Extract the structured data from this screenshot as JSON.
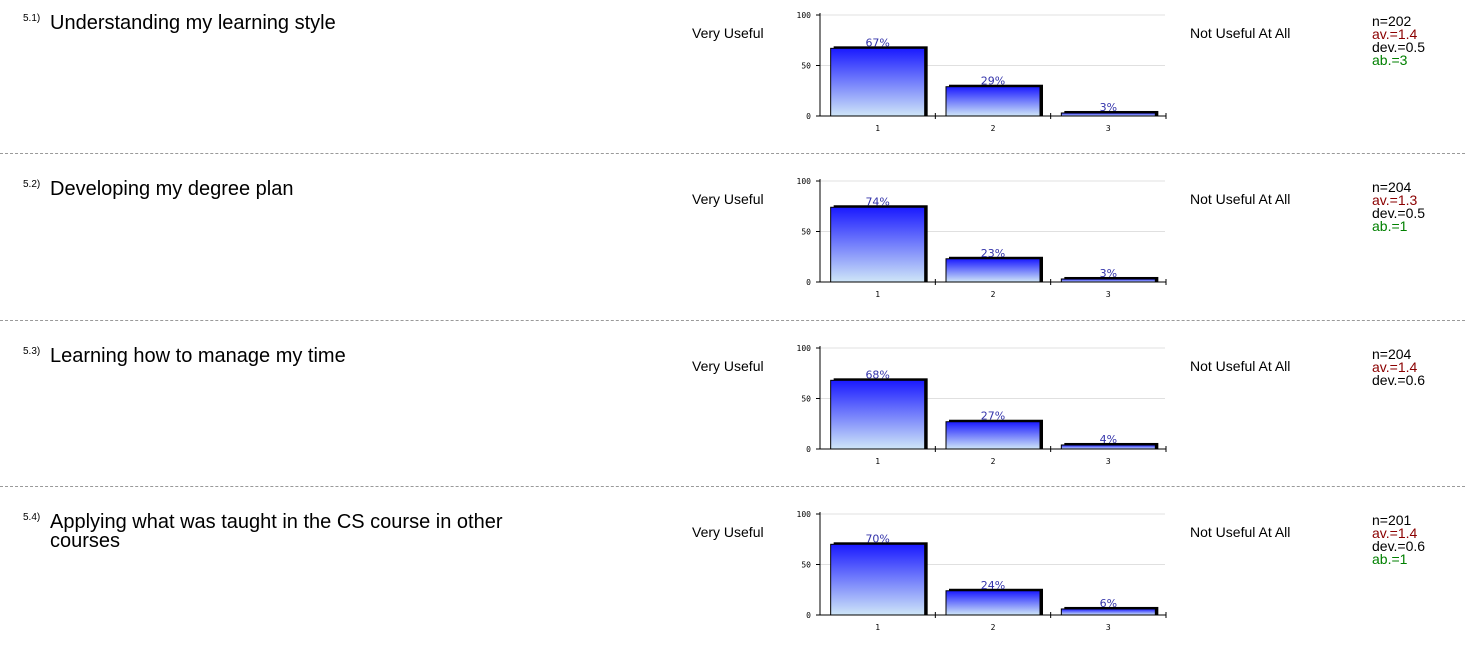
{
  "scale": {
    "left_label": "Very Useful",
    "right_label": "Not Useful At All"
  },
  "chart_data": [
    {
      "type": "bar",
      "title": "Understanding my learning style",
      "categories": [
        "1",
        "2",
        "3"
      ],
      "values": [
        67,
        29,
        3
      ],
      "value_labels": [
        "67%",
        "29%",
        "3%"
      ],
      "ylim": [
        0,
        100
      ],
      "yticks": [
        "0",
        "50",
        "100"
      ]
    },
    {
      "type": "bar",
      "title": "Developing my degree plan",
      "categories": [
        "1",
        "2",
        "3"
      ],
      "values": [
        74,
        23,
        3
      ],
      "value_labels": [
        "74%",
        "23%",
        "3%"
      ],
      "ylim": [
        0,
        100
      ],
      "yticks": [
        "0",
        "50",
        "100"
      ]
    },
    {
      "type": "bar",
      "title": "Learning how to manage my time",
      "categories": [
        "1",
        "2",
        "3"
      ],
      "values": [
        68,
        27,
        4
      ],
      "value_labels": [
        "68%",
        "27%",
        "4%"
      ],
      "ylim": [
        0,
        100
      ],
      "yticks": [
        "0",
        "50",
        "100"
      ]
    },
    {
      "type": "bar",
      "title": "Applying what was taught in the CS course in other courses",
      "categories": [
        "1",
        "2",
        "3"
      ],
      "values": [
        70,
        24,
        6
      ],
      "value_labels": [
        "70%",
        "24%",
        "6%"
      ],
      "ylim": [
        0,
        100
      ],
      "yticks": [
        "0",
        "50",
        "100"
      ]
    }
  ],
  "items": [
    {
      "number": "5.1)",
      "question": "Understanding my learning style",
      "n": "n=202",
      "av": "av.=1.4",
      "dev": "dev.=0.5",
      "ab": "ab.=3"
    },
    {
      "number": "5.2)",
      "question": "Developing my degree plan",
      "n": "n=204",
      "av": "av.=1.3",
      "dev": "dev.=0.5",
      "ab": "ab.=1"
    },
    {
      "number": "5.3)",
      "question": "Learning how to manage my time",
      "n": "n=204",
      "av": "av.=1.4",
      "dev": "dev.=0.6",
      "ab": ""
    },
    {
      "number": "5.4)",
      "question": "Applying what was taught in the CS course in other courses",
      "n": "n=201",
      "av": "av.=1.4",
      "dev": "dev.=0.6",
      "ab": "ab.=1"
    }
  ],
  "colors": {
    "bar_top": "#1a1aff",
    "bar_bottom": "#cfe6f8",
    "value_label": "#3333aa",
    "av": "#8b0000",
    "ab": "#008000"
  }
}
